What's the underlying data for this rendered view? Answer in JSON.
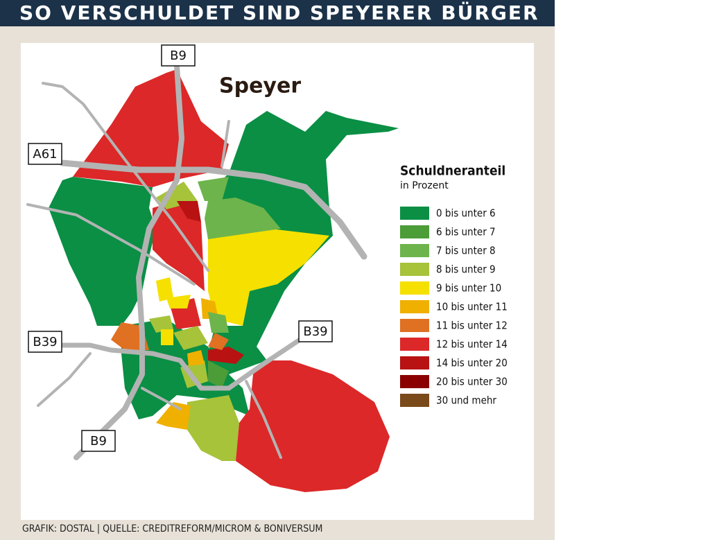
{
  "header": {
    "title": "SO VERSCHULDET SIND SPEYERER BÜRGER"
  },
  "map": {
    "city": "Speyer",
    "roads": [
      "B9",
      "A61",
      "B39",
      "B39",
      "B9"
    ]
  },
  "legend": {
    "title": "Schuldneranteil",
    "subtitle": "in Prozent",
    "items": [
      {
        "label": "0 bis unter 6",
        "color": "#0a8f45"
      },
      {
        "label": "6 bis unter 7",
        "color": "#4c9c38"
      },
      {
        "label": "7 bis unter 8",
        "color": "#6db44c"
      },
      {
        "label": "8 bis unter 9",
        "color": "#a6c33a"
      },
      {
        "label": "9 bis unter 10",
        "color": "#f5e000"
      },
      {
        "label": "10 bis unter 11",
        "color": "#efb000"
      },
      {
        "label": "11 bis unter 12",
        "color": "#e07022"
      },
      {
        "label": "12 bis unter 14",
        "color": "#dc2828"
      },
      {
        "label": "14 bis unter 20",
        "color": "#b81212"
      },
      {
        "label": "20 bis unter 30",
        "color": "#8a0000"
      },
      {
        "label": "30 und mehr",
        "color": "#7a4a1a"
      }
    ]
  },
  "footer": "GRAFIK: DOSTAL | QUELLE: CREDITREFORM/MICROM & BONIVERSUM"
}
